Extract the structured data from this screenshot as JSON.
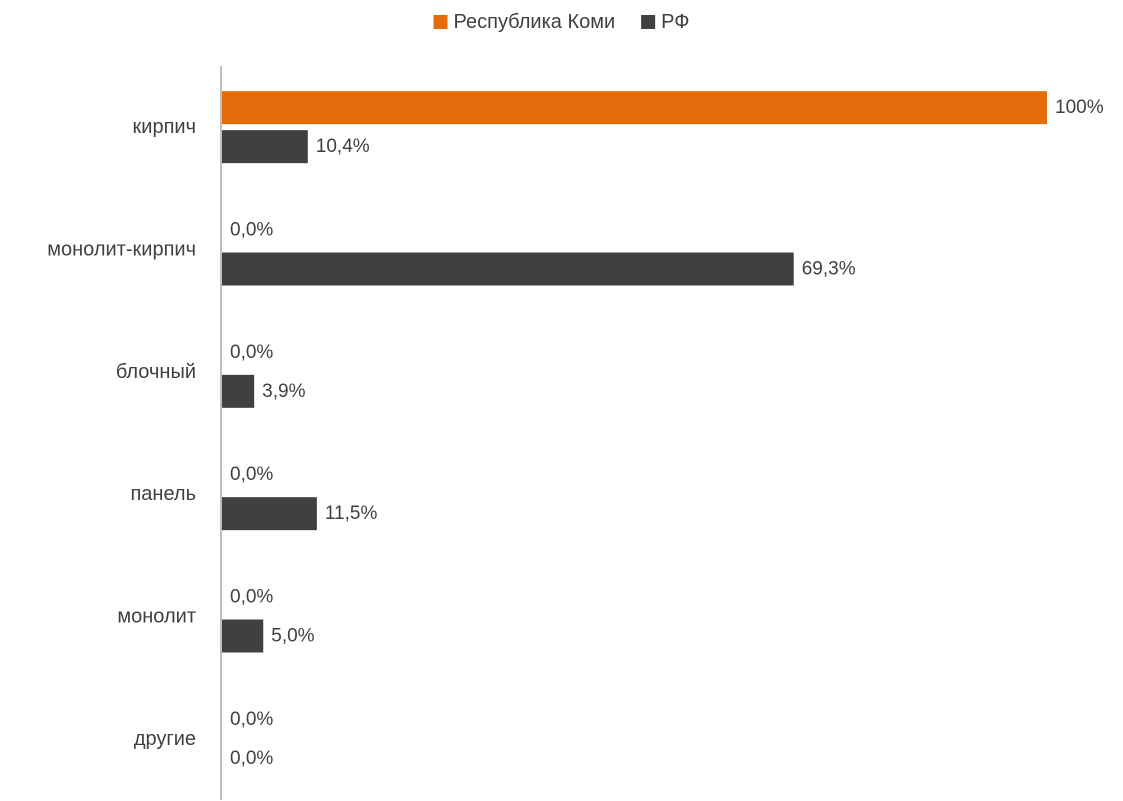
{
  "chart_data": {
    "type": "bar",
    "orientation": "horizontal",
    "categories": [
      "кирпич",
      "монолит-кирпич",
      "блочный",
      "панель",
      "монолит",
      "другие"
    ],
    "series": [
      {
        "name": "Республика Коми",
        "color": "#E46C0A",
        "values": [
          100,
          0,
          0,
          0,
          0,
          0
        ],
        "labels": [
          "100%",
          "0,0%",
          "0,0%",
          "0,0%",
          "0,0%",
          "0,0%"
        ]
      },
      {
        "name": "РФ",
        "color": "#404040",
        "values": [
          10.4,
          69.3,
          3.9,
          11.5,
          5.0,
          0
        ],
        "labels": [
          "10,4%",
          "69,3%",
          "3,9%",
          "11,5%",
          "5,0%",
          "0,0%"
        ]
      }
    ],
    "xlim": [
      0,
      100
    ],
    "grid": false,
    "legend_position": "top"
  }
}
